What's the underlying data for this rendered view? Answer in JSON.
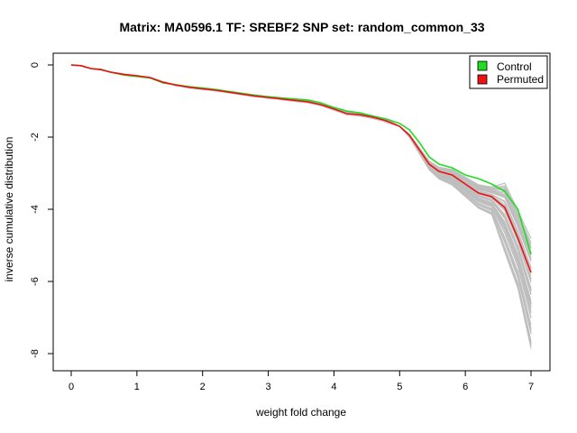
{
  "chart_data": {
    "type": "line",
    "title": "Matrix: MA0596.1 TF: SREBF2 SNP set: random_common_33",
    "xlabel": "weight fold change",
    "ylabel": "inverse cumulative distribution",
    "xlim": [
      0,
      7
    ],
    "ylim": [
      -8,
      0
    ],
    "xticks": [
      "0",
      "1",
      "2",
      "3",
      "4",
      "5",
      "6",
      "7"
    ],
    "yticks": [
      "0",
      "-2",
      "-4",
      "-6",
      "-8"
    ],
    "grid": false,
    "legend": {
      "position": "top-right",
      "entries": [
        {
          "label": "Control",
          "color": "#22dd22"
        },
        {
          "label": "Permuted",
          "color": "#ee1111"
        }
      ]
    },
    "colors": {
      "background_lines": "#bebebe",
      "control": "#22dd22",
      "permuted": "#ee1111"
    },
    "background_line_count": 60,
    "series": [
      {
        "name": "Control",
        "x": [
          0,
          0.15,
          0.3,
          0.45,
          0.6,
          0.8,
          1.0,
          1.2,
          1.4,
          1.6,
          1.8,
          2.0,
          2.2,
          2.5,
          2.8,
          3.0,
          3.3,
          3.6,
          3.8,
          4.0,
          4.2,
          4.4,
          4.6,
          4.8,
          5.0,
          5.15,
          5.3,
          5.45,
          5.6,
          5.8,
          6.0,
          6.2,
          6.4,
          6.6,
          6.8,
          7.0
        ],
        "values": [
          0,
          -0.02,
          -0.1,
          -0.12,
          -0.2,
          -0.28,
          -0.32,
          -0.36,
          -0.5,
          -0.55,
          -0.6,
          -0.64,
          -0.68,
          -0.76,
          -0.84,
          -0.88,
          -0.93,
          -0.97,
          -1.05,
          -1.18,
          -1.28,
          -1.33,
          -1.42,
          -1.5,
          -1.62,
          -1.8,
          -2.15,
          -2.55,
          -2.75,
          -2.85,
          -3.05,
          -3.15,
          -3.3,
          -3.5,
          -4.0,
          -5.25
        ]
      },
      {
        "name": "Permuted",
        "x": [
          0,
          0.15,
          0.3,
          0.45,
          0.6,
          0.8,
          1.0,
          1.2,
          1.4,
          1.6,
          1.8,
          2.0,
          2.2,
          2.5,
          2.8,
          3.0,
          3.3,
          3.6,
          3.8,
          4.0,
          4.2,
          4.4,
          4.6,
          4.8,
          5.0,
          5.15,
          5.3,
          5.45,
          5.6,
          5.8,
          6.0,
          6.2,
          6.4,
          6.6,
          6.8,
          7.0
        ],
        "values": [
          0,
          -0.02,
          -0.1,
          -0.13,
          -0.2,
          -0.26,
          -0.3,
          -0.35,
          -0.48,
          -0.56,
          -0.62,
          -0.66,
          -0.7,
          -0.78,
          -0.86,
          -0.9,
          -0.96,
          -1.02,
          -1.1,
          -1.22,
          -1.35,
          -1.38,
          -1.45,
          -1.55,
          -1.7,
          -1.95,
          -2.35,
          -2.75,
          -2.95,
          -3.05,
          -3.3,
          -3.55,
          -3.65,
          -3.95,
          -4.8,
          -5.75
        ]
      }
    ]
  }
}
